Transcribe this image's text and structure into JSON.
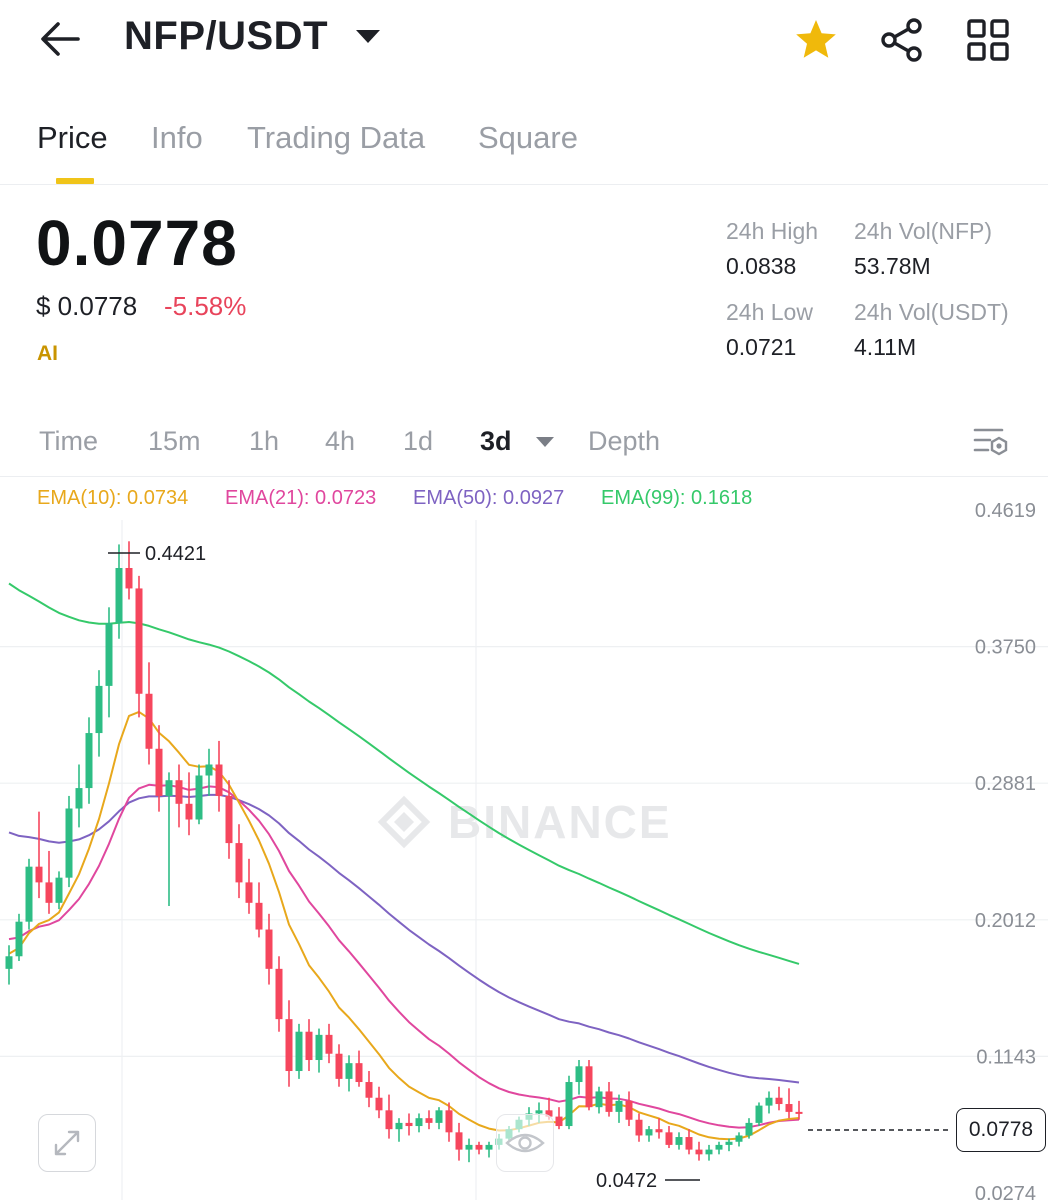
{
  "header": {
    "pair": "NFP/USDT",
    "back_icon": "arrow-left-icon",
    "favorite_icon": "star-icon",
    "share_icon": "share-icon",
    "grid_icon": "grid-icon",
    "favorite_color": "#f0b90b"
  },
  "tabs": [
    {
      "label": "Price",
      "active": true
    },
    {
      "label": "Info",
      "active": false
    },
    {
      "label": "Trading Data",
      "active": false
    },
    {
      "label": "Square",
      "active": false
    }
  ],
  "ticker": {
    "last_price": "0.0778",
    "usd_price": "$ 0.0778",
    "change_pct": "-5.58%",
    "ai_label": "AI",
    "high_label": "24h High",
    "high_value": "0.0838",
    "low_label": "24h Low",
    "low_value": "0.0721",
    "vol_base_label": "24h Vol(NFP)",
    "vol_base_value": "53.78M",
    "vol_quote_label": "24h Vol(USDT)",
    "vol_quote_value": "4.11M",
    "down_color": "#e8445b"
  },
  "intervals": [
    {
      "label": "Time",
      "active": false
    },
    {
      "label": "15m",
      "active": false
    },
    {
      "label": "1h",
      "active": false
    },
    {
      "label": "4h",
      "active": false
    },
    {
      "label": "1d",
      "active": false
    },
    {
      "label": "3d",
      "active": true
    },
    {
      "label": "Depth",
      "active": false
    }
  ],
  "chart_settings_icon": "chart-settings-icon",
  "ema": [
    {
      "label": "EMA(10): 0.0734",
      "color": "#e8a81c"
    },
    {
      "label": "EMA(21): 0.0723",
      "color": "#e0479e"
    },
    {
      "label": "EMA(50): 0.0927",
      "color": "#7e63c2"
    },
    {
      "label": "EMA(99): 0.1618",
      "color": "#35c96a"
    }
  ],
  "chart_data": {
    "type": "candlestick",
    "interval": "3d",
    "y_ticks": [
      0.4619,
      0.375,
      0.2881,
      0.2012,
      0.1143,
      0.0274
    ],
    "ylim": [
      0.0274,
      0.4619
    ],
    "y_scale": "linear",
    "grid": true,
    "watermark": "BINANCE",
    "max_marker": "0.4421",
    "min_marker": "0.0472",
    "last_price_tag": "0.0778",
    "up_color": "#2ebd85",
    "down_color": "#f6465d",
    "candles": [
      [
        0.17,
        0.185,
        0.16,
        0.178
      ],
      [
        0.178,
        0.205,
        0.175,
        0.2
      ],
      [
        0.2,
        0.24,
        0.195,
        0.235
      ],
      [
        0.235,
        0.27,
        0.215,
        0.225
      ],
      [
        0.225,
        0.245,
        0.205,
        0.212
      ],
      [
        0.212,
        0.232,
        0.208,
        0.228
      ],
      [
        0.228,
        0.28,
        0.222,
        0.272
      ],
      [
        0.272,
        0.3,
        0.26,
        0.285
      ],
      [
        0.285,
        0.33,
        0.275,
        0.32
      ],
      [
        0.32,
        0.36,
        0.305,
        0.35
      ],
      [
        0.35,
        0.4,
        0.33,
        0.39
      ],
      [
        0.39,
        0.44,
        0.38,
        0.425
      ],
      [
        0.425,
        0.442,
        0.405,
        0.412
      ],
      [
        0.412,
        0.42,
        0.33,
        0.345
      ],
      [
        0.345,
        0.365,
        0.3,
        0.31
      ],
      [
        0.31,
        0.325,
        0.27,
        0.28
      ],
      [
        0.28,
        0.295,
        0.21,
        0.29
      ],
      [
        0.29,
        0.3,
        0.26,
        0.275
      ],
      [
        0.275,
        0.295,
        0.255,
        0.265
      ],
      [
        0.265,
        0.3,
        0.262,
        0.293
      ],
      [
        0.293,
        0.31,
        0.28,
        0.3
      ],
      [
        0.3,
        0.315,
        0.27,
        0.28
      ],
      [
        0.28,
        0.29,
        0.24,
        0.25
      ],
      [
        0.25,
        0.262,
        0.215,
        0.225
      ],
      [
        0.225,
        0.24,
        0.205,
        0.212
      ],
      [
        0.212,
        0.225,
        0.19,
        0.195
      ],
      [
        0.195,
        0.205,
        0.16,
        0.17
      ],
      [
        0.17,
        0.178,
        0.13,
        0.138
      ],
      [
        0.138,
        0.15,
        0.095,
        0.105
      ],
      [
        0.105,
        0.135,
        0.1,
        0.13
      ],
      [
        0.13,
        0.138,
        0.105,
        0.112
      ],
      [
        0.112,
        0.132,
        0.104,
        0.128
      ],
      [
        0.128,
        0.135,
        0.11,
        0.116
      ],
      [
        0.116,
        0.122,
        0.095,
        0.1
      ],
      [
        0.1,
        0.115,
        0.092,
        0.11
      ],
      [
        0.11,
        0.118,
        0.095,
        0.098
      ],
      [
        0.098,
        0.105,
        0.082,
        0.088
      ],
      [
        0.088,
        0.095,
        0.075,
        0.08
      ],
      [
        0.08,
        0.09,
        0.062,
        0.068
      ],
      [
        0.068,
        0.075,
        0.06,
        0.072
      ],
      [
        0.072,
        0.078,
        0.064,
        0.07
      ],
      [
        0.07,
        0.078,
        0.066,
        0.075
      ],
      [
        0.075,
        0.08,
        0.068,
        0.072
      ],
      [
        0.072,
        0.082,
        0.068,
        0.08
      ],
      [
        0.08,
        0.085,
        0.06,
        0.066
      ],
      [
        0.066,
        0.072,
        0.048,
        0.055
      ],
      [
        0.055,
        0.062,
        0.047,
        0.058
      ],
      [
        0.058,
        0.06,
        0.052,
        0.055
      ],
      [
        0.055,
        0.06,
        0.05,
        0.058
      ],
      [
        0.058,
        0.065,
        0.055,
        0.062
      ],
      [
        0.062,
        0.07,
        0.06,
        0.068
      ],
      [
        0.068,
        0.076,
        0.066,
        0.074
      ],
      [
        0.074,
        0.082,
        0.07,
        0.078
      ],
      [
        0.078,
        0.085,
        0.072,
        0.08
      ],
      [
        0.08,
        0.088,
        0.074,
        0.076
      ],
      [
        0.076,
        0.082,
        0.068,
        0.07
      ],
      [
        0.07,
        0.102,
        0.068,
        0.098
      ],
      [
        0.098,
        0.112,
        0.09,
        0.108
      ],
      [
        0.108,
        0.112,
        0.08,
        0.082
      ],
      [
        0.082,
        0.095,
        0.078,
        0.092
      ],
      [
        0.092,
        0.098,
        0.076,
        0.079
      ],
      [
        0.079,
        0.09,
        0.072,
        0.086
      ],
      [
        0.086,
        0.092,
        0.07,
        0.074
      ],
      [
        0.074,
        0.078,
        0.06,
        0.064
      ],
      [
        0.064,
        0.07,
        0.06,
        0.068
      ],
      [
        0.068,
        0.075,
        0.062,
        0.066
      ],
      [
        0.066,
        0.07,
        0.056,
        0.058
      ],
      [
        0.058,
        0.066,
        0.055,
        0.063
      ],
      [
        0.063,
        0.068,
        0.052,
        0.055
      ],
      [
        0.055,
        0.06,
        0.048,
        0.052
      ],
      [
        0.052,
        0.058,
        0.048,
        0.055
      ],
      [
        0.055,
        0.06,
        0.052,
        0.058
      ],
      [
        0.058,
        0.062,
        0.054,
        0.06
      ],
      [
        0.06,
        0.066,
        0.057,
        0.064
      ],
      [
        0.064,
        0.075,
        0.062,
        0.072
      ],
      [
        0.072,
        0.085,
        0.07,
        0.083
      ],
      [
        0.083,
        0.092,
        0.078,
        0.088
      ],
      [
        0.088,
        0.095,
        0.08,
        0.084
      ],
      [
        0.084,
        0.094,
        0.075,
        0.079
      ],
      [
        0.079,
        0.086,
        0.074,
        0.078
      ]
    ]
  }
}
